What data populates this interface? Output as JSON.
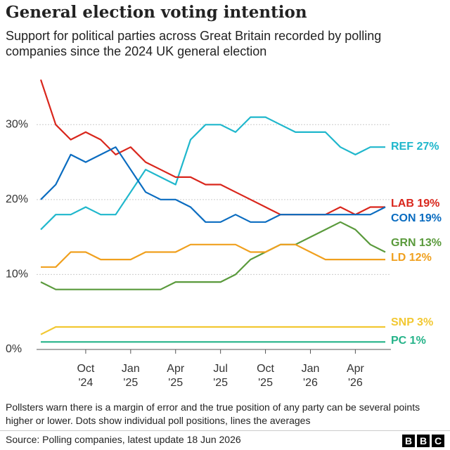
{
  "chart_data": {
    "type": "line",
    "title": "General election voting intention",
    "subtitle": "Support for political parties across Great Britain recorded by polling companies since the 2024 UK general election",
    "x": [
      "2024-07",
      "2024-08",
      "2024-09",
      "2024-10",
      "2024-11",
      "2024-12",
      "2025-01",
      "2025-02",
      "2025-03",
      "2025-04",
      "2025-05",
      "2025-06",
      "2025-07",
      "2025-08",
      "2025-09",
      "2025-10",
      "2025-11",
      "2025-12",
      "2026-01",
      "2026-02",
      "2026-03",
      "2026-04",
      "2026-05",
      "2026-06"
    ],
    "xlim": [
      "2024-07",
      "2026-06"
    ],
    "xticks": [
      {
        "value": "2024-10",
        "label": "Oct '24"
      },
      {
        "value": "2025-01",
        "label": "Jan '25"
      },
      {
        "value": "2025-04",
        "label": "Apr '25"
      },
      {
        "value": "2025-07",
        "label": "Jul '25"
      },
      {
        "value": "2025-10",
        "label": "Oct '25"
      },
      {
        "value": "2026-01",
        "label": "Jan '26"
      },
      {
        "value": "2026-04",
        "label": "Apr '26"
      }
    ],
    "ylim": [
      0,
      36.5
    ],
    "yticks": [
      {
        "value": 0,
        "label": "0%"
      },
      {
        "value": 10,
        "label": "10%"
      },
      {
        "value": 20,
        "label": "20%"
      },
      {
        "value": 30,
        "label": "30%"
      }
    ],
    "grid": true,
    "series": [
      {
        "name": "REF",
        "label": "REF 27%",
        "color": "#1fb7cc",
        "values": [
          16,
          18,
          18,
          19,
          18,
          18,
          21,
          24,
          23,
          22,
          28,
          30,
          30,
          29,
          31,
          31,
          30,
          29,
          29,
          29,
          27,
          26,
          27,
          27
        ]
      },
      {
        "name": "LAB",
        "label": "LAB 19%",
        "color": "#d9261c",
        "values": [
          36,
          30,
          28,
          29,
          28,
          26,
          27,
          25,
          24,
          23,
          23,
          22,
          22,
          21,
          20,
          19,
          18,
          18,
          18,
          18,
          19,
          18,
          19,
          19
        ]
      },
      {
        "name": "CON",
        "label": "CON 19%",
        "color": "#0a6cc0",
        "values": [
          20,
          22,
          26,
          25,
          26,
          27,
          24,
          21,
          20,
          20,
          19,
          17,
          17,
          18,
          17,
          17,
          18,
          18,
          18,
          18,
          18,
          18,
          18,
          19
        ]
      },
      {
        "name": "GRN",
        "label": "GRN 13%",
        "color": "#5a9a3c",
        "values": [
          9,
          8,
          8,
          8,
          8,
          8,
          8,
          8,
          8,
          9,
          9,
          9,
          9,
          10,
          12,
          13,
          14,
          14,
          15,
          16,
          17,
          16,
          14,
          13
        ]
      },
      {
        "name": "LD",
        "label": "LD 12%",
        "color": "#f0a01e",
        "values": [
          11,
          11,
          13,
          13,
          12,
          12,
          12,
          13,
          13,
          13,
          14,
          14,
          14,
          14,
          13,
          13,
          14,
          14,
          13,
          12,
          12,
          12,
          12,
          12
        ]
      },
      {
        "name": "SNP",
        "label": "SNP 3%",
        "color": "#f2c832",
        "values": [
          2,
          3,
          3,
          3,
          3,
          3,
          3,
          3,
          3,
          3,
          3,
          3,
          3,
          3,
          3,
          3,
          3,
          3,
          3,
          3,
          3,
          3,
          3,
          3
        ]
      },
      {
        "name": "PC",
        "label": "PC 1%",
        "color": "#25b389",
        "values": [
          1,
          1,
          1,
          1,
          1,
          1,
          1,
          1,
          1,
          1,
          1,
          1,
          1,
          1,
          1,
          1,
          1,
          1,
          1,
          1,
          1,
          1,
          1,
          1
        ]
      }
    ],
    "note": "Pollsters warn there is a margin of error and the true position of any party can be several points higher or lower. Dots show individual poll positions, lines the averages",
    "source": "Source: Polling companies, latest update 18 Jun 2026",
    "logo": [
      "B",
      "B",
      "C"
    ]
  }
}
